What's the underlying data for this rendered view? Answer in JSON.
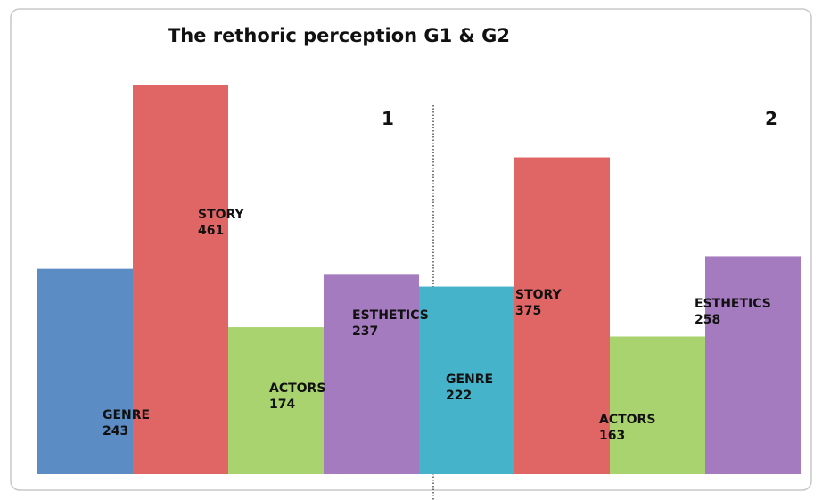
{
  "chart_data": {
    "type": "bar",
    "title": "The rethoric perception G1 & G2",
    "categories": [
      "GENRE",
      "STORY",
      "ACTORS",
      "ESTHETICS"
    ],
    "series": [
      {
        "name": "1",
        "colors": [
          "#5b8cc4",
          "#e06666",
          "#a9d36e",
          "#a57bbf"
        ],
        "values": [
          243,
          461,
          174,
          237
        ]
      },
      {
        "name": "2",
        "colors": [
          "#45b3c9",
          "#e06666",
          "#a9d36e",
          "#a57bbf"
        ],
        "values": [
          222,
          375,
          163,
          258
        ]
      }
    ]
  }
}
